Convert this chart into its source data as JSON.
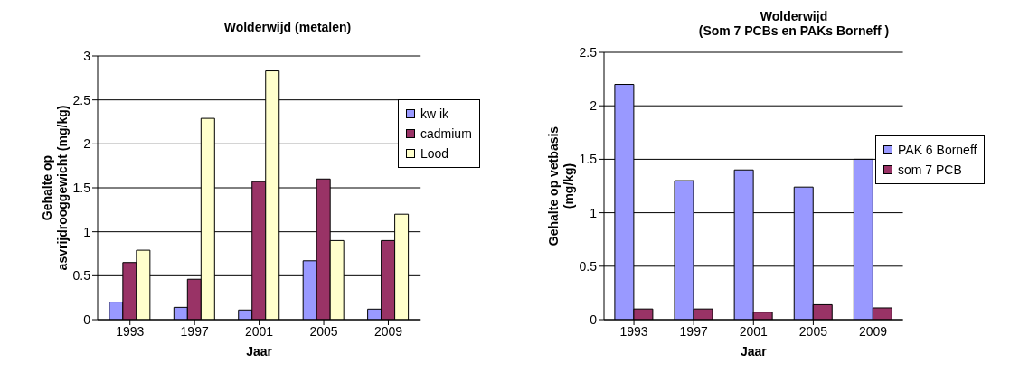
{
  "chart_data": [
    {
      "type": "bar",
      "title": "Wolderwijd (metalen)",
      "xlabel": "Jaar",
      "ylabel": "Gehalte op\nasvrijdrooggewicht (mg/kg)",
      "categories": [
        "1993",
        "1997",
        "2001",
        "2005",
        "2009"
      ],
      "series": [
        {
          "name": "kw ik",
          "color": "#9999ff",
          "values": [
            0.2,
            0.14,
            0.11,
            0.67,
            0.12
          ]
        },
        {
          "name": "cadmium",
          "color": "#993366",
          "values": [
            0.65,
            0.46,
            1.57,
            1.6,
            0.9
          ]
        },
        {
          "name": "Lood",
          "color": "#ffffcc",
          "values": [
            0.79,
            2.29,
            2.83,
            0.9,
            1.2
          ]
        }
      ],
      "ylim": [
        0,
        3
      ],
      "yticks": [
        0,
        0.5,
        1,
        1.5,
        2,
        2.5,
        3
      ],
      "grid": "y",
      "legend": "top right"
    },
    {
      "type": "bar",
      "title": "Wolderwijd\n(Som 7 PCBs en PAKs Borneff )",
      "xlabel": "Jaar",
      "ylabel": "Gehalte op vetbasis\n(mg/kg)",
      "categories": [
        "1993",
        "1997",
        "2001",
        "2005",
        "2009"
      ],
      "series": [
        {
          "name": "PAK 6 Borneff",
          "color": "#9999ff",
          "values": [
            2.2,
            1.3,
            1.4,
            1.24,
            1.5
          ]
        },
        {
          "name": "som 7 PCB",
          "color": "#993366",
          "values": [
            0.1,
            0.1,
            0.07,
            0.14,
            0.11
          ]
        }
      ],
      "ylim": [
        0,
        2.5
      ],
      "yticks": [
        0,
        0.5,
        1,
        1.5,
        2,
        2.5
      ],
      "grid": "y",
      "legend": "top right"
    }
  ]
}
